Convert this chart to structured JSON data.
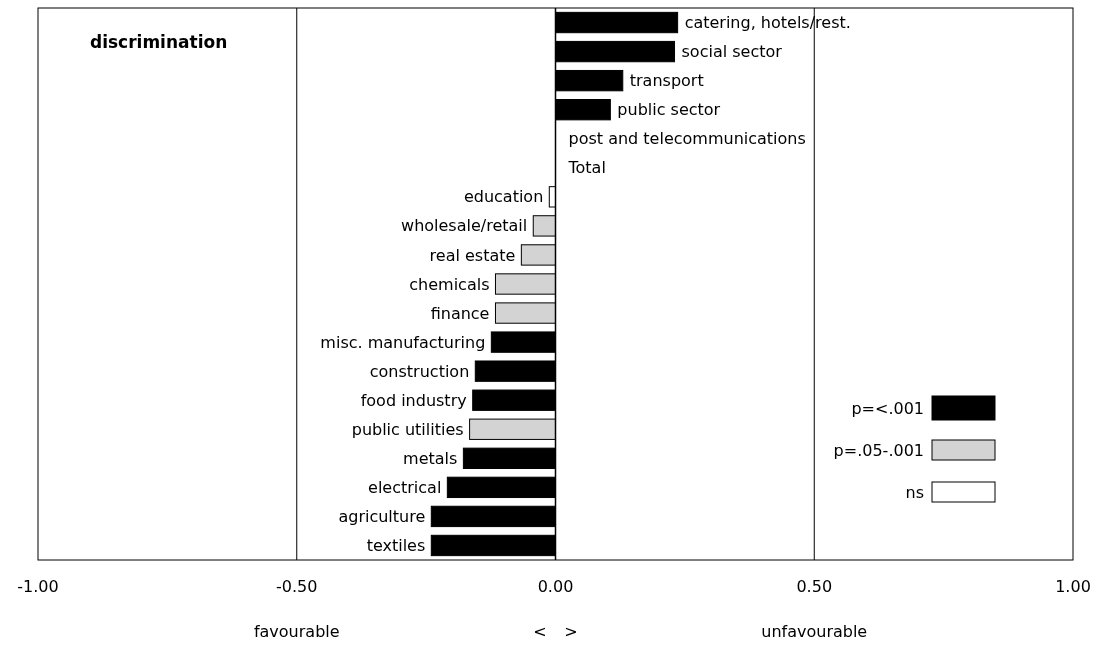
{
  "chart_data": {
    "type": "bar",
    "orientation": "horizontal",
    "title": "discrimination",
    "categories": [
      "catering, hotels/rest.",
      "social sector",
      "transport",
      "public sector",
      "post and telecommunications",
      "Total",
      "education",
      "wholesale/retail",
      "real estate",
      "chemicals",
      "finance",
      "misc. manufacturing",
      "construction",
      "food industry",
      "public utilities",
      "metals",
      "electrical",
      "agriculture",
      "textiles"
    ],
    "series": [
      {
        "name": "p=<.001",
        "color": "#000000",
        "values": [
          0.236,
          0.23,
          0.13,
          0.106,
          null,
          null,
          null,
          null,
          null,
          null,
          null,
          -0.124,
          -0.155,
          -0.16,
          null,
          -0.178,
          -0.209,
          -0.24,
          -0.24
        ]
      },
      {
        "name": "p=.05-.001",
        "color": "#d3d3d3",
        "values": [
          null,
          null,
          null,
          null,
          null,
          null,
          null,
          -0.043,
          -0.066,
          -0.116,
          -0.116,
          null,
          null,
          null,
          -0.166,
          null,
          null,
          null,
          null
        ]
      },
      {
        "name": "ns",
        "color": "#ffffff",
        "values": [
          null,
          null,
          null,
          null,
          0,
          0,
          -0.012,
          null,
          null,
          null,
          null,
          null,
          null,
          null,
          null,
          null,
          null,
          null,
          null
        ]
      }
    ],
    "xlim": [
      -1,
      1
    ],
    "xticks": [
      {
        "value": -1,
        "label": "-1.00"
      },
      {
        "value": -0.5,
        "label": "-0.50"
      },
      {
        "value": 0,
        "label": "0.00"
      },
      {
        "value": 0.5,
        "label": "0.50"
      },
      {
        "value": 1,
        "label": "1.00"
      }
    ],
    "grid": "x",
    "legend": "bottom right",
    "annotations": [
      "favourable",
      "<",
      ">",
      "unfavourable"
    ]
  }
}
